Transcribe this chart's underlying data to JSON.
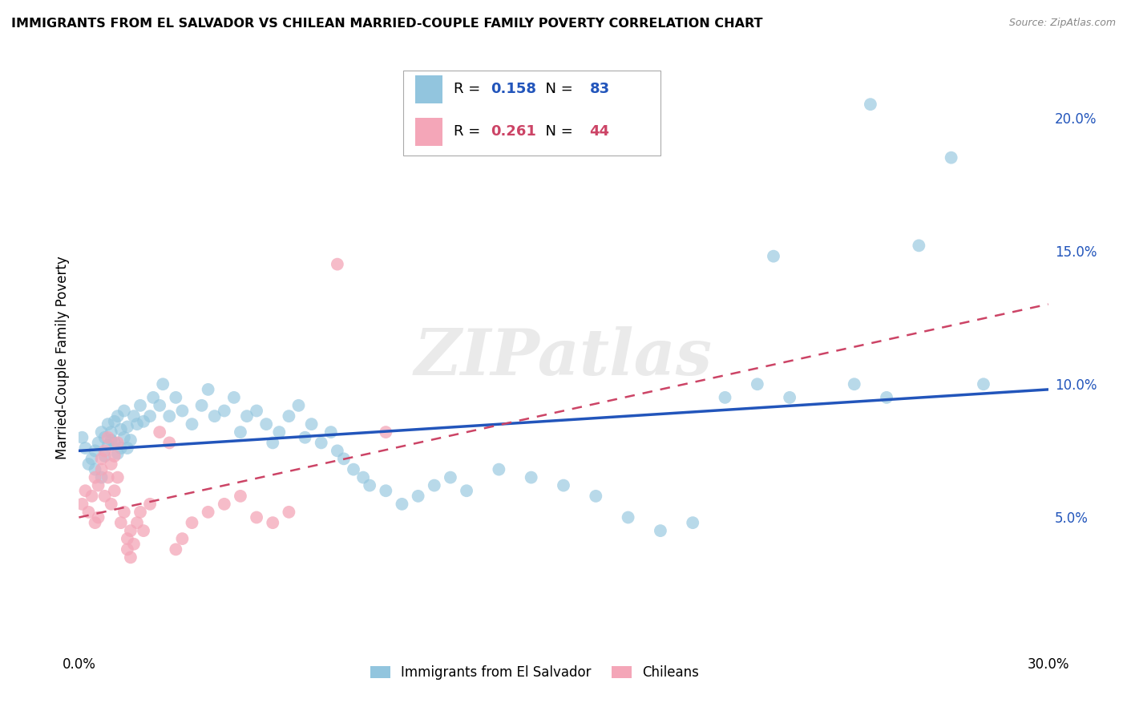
{
  "title": "IMMIGRANTS FROM EL SALVADOR VS CHILEAN MARRIED-COUPLE FAMILY POVERTY CORRELATION CHART",
  "source": "Source: ZipAtlas.com",
  "ylabel": "Married-Couple Family Poverty",
  "xlim": [
    0.0,
    0.3
  ],
  "ylim": [
    0.0,
    0.22
  ],
  "xticks": [
    0.0,
    0.05,
    0.1,
    0.15,
    0.2,
    0.25,
    0.3
  ],
  "xticklabels": [
    "0.0%",
    "",
    "",
    "",
    "",
    "",
    "30.0%"
  ],
  "yticks_right": [
    0.05,
    0.1,
    0.15,
    0.2
  ],
  "ytick_labels_right": [
    "5.0%",
    "10.0%",
    "15.0%",
    "20.0%"
  ],
  "r_salvador": 0.158,
  "n_salvador": 83,
  "r_chilean": 0.261,
  "n_chilean": 44,
  "color_salvador": "#92C5DE",
  "color_chilean": "#F4A6B8",
  "trendline_salvador": "#2255BB",
  "trendline_chilean": "#CC4466",
  "legend_label_salvador": "Immigrants from El Salvador",
  "legend_label_chilean": "Chileans",
  "grid_color": "#E0E0E0",
  "background_color": "#FFFFFF",
  "watermark": "ZIPatlas",
  "sal_trendline_x": [
    0.0,
    0.3
  ],
  "sal_trendline_y": [
    0.075,
    0.098
  ],
  "chil_trendline_x": [
    0.0,
    0.3
  ],
  "chil_trendline_y": [
    0.05,
    0.13
  ],
  "sal_points": [
    [
      0.001,
      0.08
    ],
    [
      0.002,
      0.076
    ],
    [
      0.003,
      0.07
    ],
    [
      0.004,
      0.072
    ],
    [
      0.005,
      0.068
    ],
    [
      0.005,
      0.075
    ],
    [
      0.006,
      0.078
    ],
    [
      0.007,
      0.082
    ],
    [
      0.007,
      0.065
    ],
    [
      0.008,
      0.073
    ],
    [
      0.008,
      0.08
    ],
    [
      0.009,
      0.085
    ],
    [
      0.009,
      0.077
    ],
    [
      0.01,
      0.079
    ],
    [
      0.01,
      0.082
    ],
    [
      0.011,
      0.078
    ],
    [
      0.011,
      0.086
    ],
    [
      0.012,
      0.088
    ],
    [
      0.012,
      0.074
    ],
    [
      0.013,
      0.083
    ],
    [
      0.013,
      0.076
    ],
    [
      0.014,
      0.09
    ],
    [
      0.014,
      0.08
    ],
    [
      0.015,
      0.084
    ],
    [
      0.015,
      0.076
    ],
    [
      0.016,
      0.079
    ],
    [
      0.017,
      0.088
    ],
    [
      0.018,
      0.085
    ],
    [
      0.019,
      0.092
    ],
    [
      0.02,
      0.086
    ],
    [
      0.022,
      0.088
    ],
    [
      0.023,
      0.095
    ],
    [
      0.025,
      0.092
    ],
    [
      0.026,
      0.1
    ],
    [
      0.028,
      0.088
    ],
    [
      0.03,
      0.095
    ],
    [
      0.032,
      0.09
    ],
    [
      0.035,
      0.085
    ],
    [
      0.038,
      0.092
    ],
    [
      0.04,
      0.098
    ],
    [
      0.042,
      0.088
    ],
    [
      0.045,
      0.09
    ],
    [
      0.048,
      0.095
    ],
    [
      0.05,
      0.082
    ],
    [
      0.052,
      0.088
    ],
    [
      0.055,
      0.09
    ],
    [
      0.058,
      0.085
    ],
    [
      0.06,
      0.078
    ],
    [
      0.062,
      0.082
    ],
    [
      0.065,
      0.088
    ],
    [
      0.068,
      0.092
    ],
    [
      0.07,
      0.08
    ],
    [
      0.072,
      0.085
    ],
    [
      0.075,
      0.078
    ],
    [
      0.078,
      0.082
    ],
    [
      0.08,
      0.075
    ],
    [
      0.082,
      0.072
    ],
    [
      0.085,
      0.068
    ],
    [
      0.088,
      0.065
    ],
    [
      0.09,
      0.062
    ],
    [
      0.095,
      0.06
    ],
    [
      0.1,
      0.055
    ],
    [
      0.105,
      0.058
    ],
    [
      0.11,
      0.062
    ],
    [
      0.115,
      0.065
    ],
    [
      0.12,
      0.06
    ],
    [
      0.13,
      0.068
    ],
    [
      0.14,
      0.065
    ],
    [
      0.15,
      0.062
    ],
    [
      0.16,
      0.058
    ],
    [
      0.17,
      0.05
    ],
    [
      0.18,
      0.045
    ],
    [
      0.19,
      0.048
    ],
    [
      0.2,
      0.095
    ],
    [
      0.21,
      0.1
    ],
    [
      0.215,
      0.148
    ],
    [
      0.22,
      0.095
    ],
    [
      0.24,
      0.1
    ],
    [
      0.25,
      0.095
    ],
    [
      0.26,
      0.152
    ],
    [
      0.27,
      0.185
    ],
    [
      0.28,
      0.1
    ],
    [
      0.245,
      0.205
    ]
  ],
  "chil_points": [
    [
      0.001,
      0.055
    ],
    [
      0.002,
      0.06
    ],
    [
      0.003,
      0.052
    ],
    [
      0.004,
      0.058
    ],
    [
      0.005,
      0.048
    ],
    [
      0.005,
      0.065
    ],
    [
      0.006,
      0.062
    ],
    [
      0.006,
      0.05
    ],
    [
      0.007,
      0.068
    ],
    [
      0.007,
      0.072
    ],
    [
      0.008,
      0.058
    ],
    [
      0.008,
      0.075
    ],
    [
      0.009,
      0.065
    ],
    [
      0.009,
      0.08
    ],
    [
      0.01,
      0.07
    ],
    [
      0.01,
      0.055
    ],
    [
      0.011,
      0.073
    ],
    [
      0.011,
      0.06
    ],
    [
      0.012,
      0.078
    ],
    [
      0.012,
      0.065
    ],
    [
      0.013,
      0.048
    ],
    [
      0.014,
      0.052
    ],
    [
      0.015,
      0.042
    ],
    [
      0.015,
      0.038
    ],
    [
      0.016,
      0.035
    ],
    [
      0.016,
      0.045
    ],
    [
      0.017,
      0.04
    ],
    [
      0.018,
      0.048
    ],
    [
      0.019,
      0.052
    ],
    [
      0.02,
      0.045
    ],
    [
      0.022,
      0.055
    ],
    [
      0.025,
      0.082
    ],
    [
      0.028,
      0.078
    ],
    [
      0.03,
      0.038
    ],
    [
      0.032,
      0.042
    ],
    [
      0.035,
      0.048
    ],
    [
      0.04,
      0.052
    ],
    [
      0.045,
      0.055
    ],
    [
      0.05,
      0.058
    ],
    [
      0.055,
      0.05
    ],
    [
      0.06,
      0.048
    ],
    [
      0.065,
      0.052
    ],
    [
      0.08,
      0.145
    ],
    [
      0.095,
      0.082
    ]
  ]
}
